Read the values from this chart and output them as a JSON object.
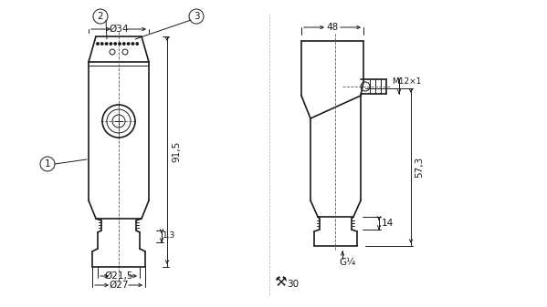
{
  "bg_color": "#ffffff",
  "line_color": "#1a1a1a",
  "dim_color": "#1a1a1a",
  "center_line_color": "#555555",
  "fig_width": 5.99,
  "fig_height": 3.37,
  "labels": {
    "diam34": "Ø34",
    "diam21_5": "Ø21,5",
    "diam27": "Ø27",
    "dim91_5": "91,5",
    "dim1_3": "1,3",
    "dim48": "48",
    "dim57_3": "57,3",
    "dim14": "14",
    "m12x1": "M12×1",
    "g14": "G¼",
    "sw30": "30",
    "circle1": "1",
    "circle2": "2",
    "circle3": "3"
  }
}
